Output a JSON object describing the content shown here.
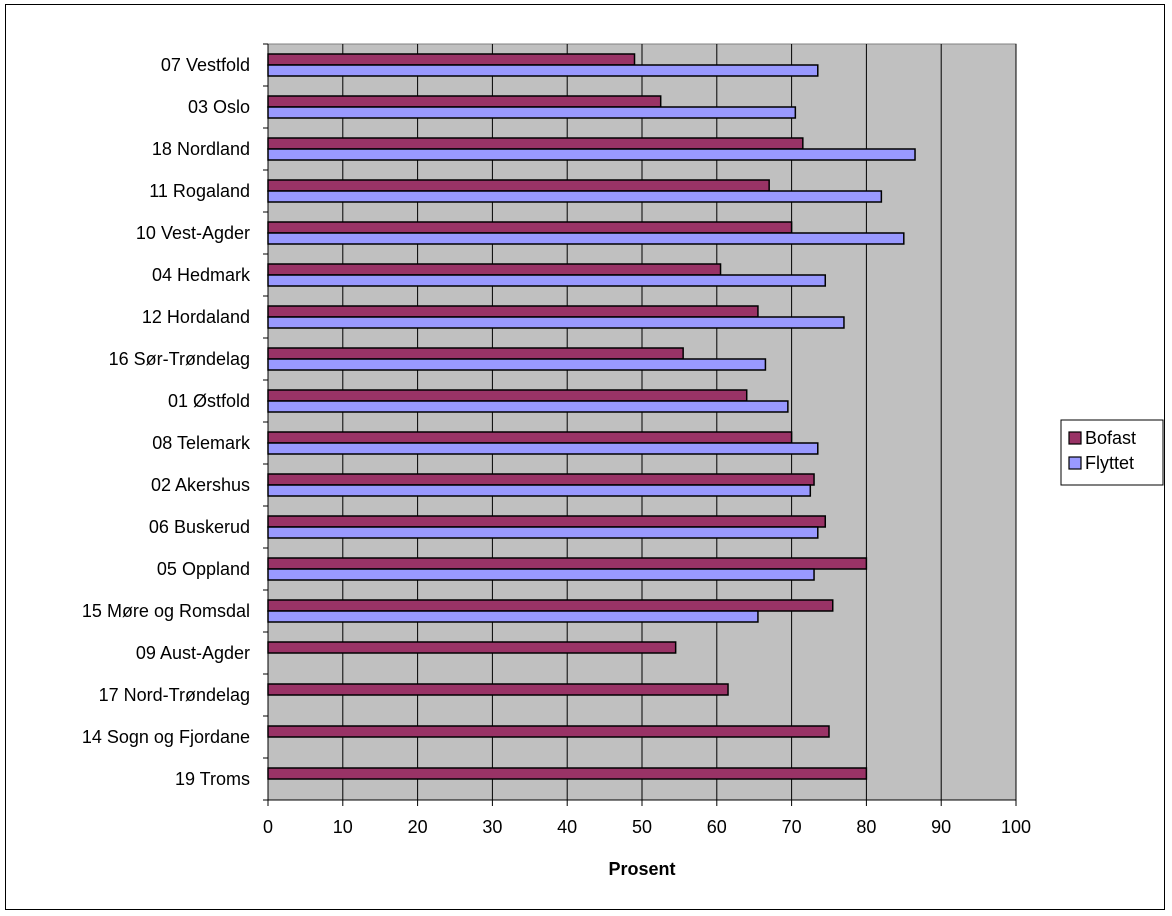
{
  "chart_data": {
    "type": "bar",
    "orientation": "horizontal",
    "categories": [
      "07 Vestfold",
      "03 Oslo",
      "18 Nordland",
      "11 Rogaland",
      "10 Vest-Agder",
      "04 Hedmark",
      "12 Hordaland",
      "16 Sør-Trøndelag",
      "01 Østfold",
      "08 Telemark",
      "02 Akershus",
      "06 Buskerud",
      "05 Oppland",
      "15 Møre og Romsdal",
      "09 Aust-Agder",
      "17 Nord-Trøndelag",
      "14 Sogn og Fjordane",
      "19 Troms"
    ],
    "series": [
      {
        "name": "Bofast",
        "color": "#993366",
        "values": [
          49,
          52.5,
          71.5,
          67,
          70,
          60.5,
          65.5,
          55.5,
          64,
          70,
          73,
          74.5,
          80,
          75.5,
          54.5,
          61.5,
          75,
          80
        ]
      },
      {
        "name": "Flyttet",
        "color": "#9999ff",
        "values": [
          73.5,
          70.5,
          86.5,
          82,
          85,
          74.5,
          77,
          66.5,
          69.5,
          73.5,
          72.5,
          73.5,
          73,
          65.5,
          null,
          null,
          null,
          null
        ]
      }
    ],
    "xlabel": "Prosent",
    "ylabel": "",
    "xlim": [
      0,
      100
    ],
    "xticks": [
      "0",
      "10",
      "20",
      "30",
      "40",
      "50",
      "60",
      "70",
      "80",
      "90",
      "100"
    ],
    "grid": true,
    "legend_position": "right",
    "plot_background": "#c0c0c0"
  }
}
